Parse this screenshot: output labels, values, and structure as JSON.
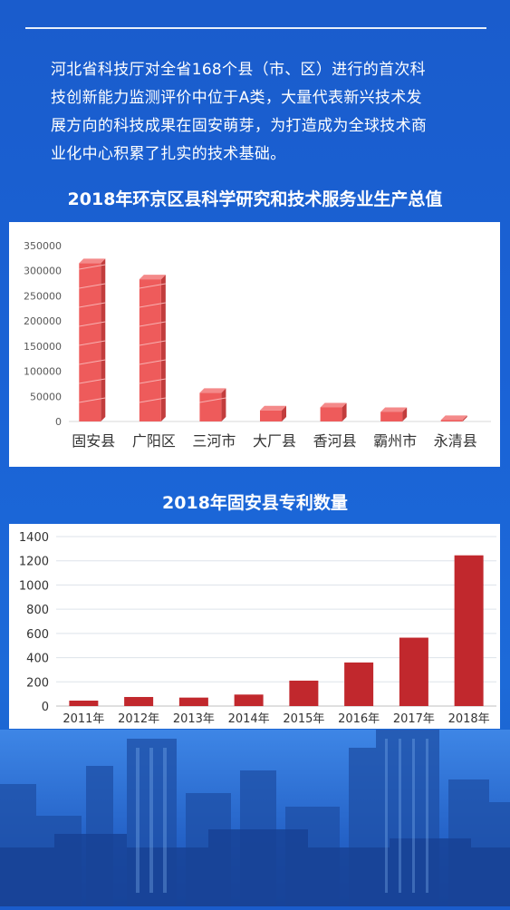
{
  "intro": {
    "lines": [
      "河北省科技厅对全省168个县（市、区）进行的首次科",
      "技创新能力监测评价中位于A类，大量代表新兴技术发",
      "展方向的科技成果在固安萌芽，为打造成为全球技术商",
      "业化中心积累了扎实的技术基础。"
    ]
  },
  "colors": {
    "background": "#1a63d6",
    "chart1_bar": "#ee5b5b",
    "chart2_bar": "#c1282d"
  },
  "chart_data": [
    {
      "type": "bar",
      "title": "2018年环京区县科学研究和技术服务业生产总值",
      "categories": [
        "固安县",
        "广阳区",
        "三河市",
        "大厂县",
        "香河县",
        "霸州市",
        "永清县"
      ],
      "values": [
        315000,
        283000,
        57000,
        22000,
        28000,
        19000,
        3000
      ],
      "ylim": [
        0,
        350000
      ],
      "yticks": [
        "0",
        "50000",
        "100000",
        "150000",
        "200000",
        "250000",
        "300000",
        "350000"
      ],
      "grid": false
    },
    {
      "type": "bar",
      "title": "2018年固安县专利数量",
      "categories": [
        "2011年",
        "2012年",
        "2013年",
        "2014年",
        "2015年",
        "2016年",
        "2017年",
        "2018年"
      ],
      "values": [
        45,
        75,
        70,
        95,
        210,
        360,
        565,
        1245
      ],
      "ylim": [
        0,
        1400
      ],
      "yticks": [
        "0",
        "200",
        "400",
        "600",
        "800",
        "1000",
        "1200",
        "1400"
      ],
      "grid": true
    }
  ]
}
